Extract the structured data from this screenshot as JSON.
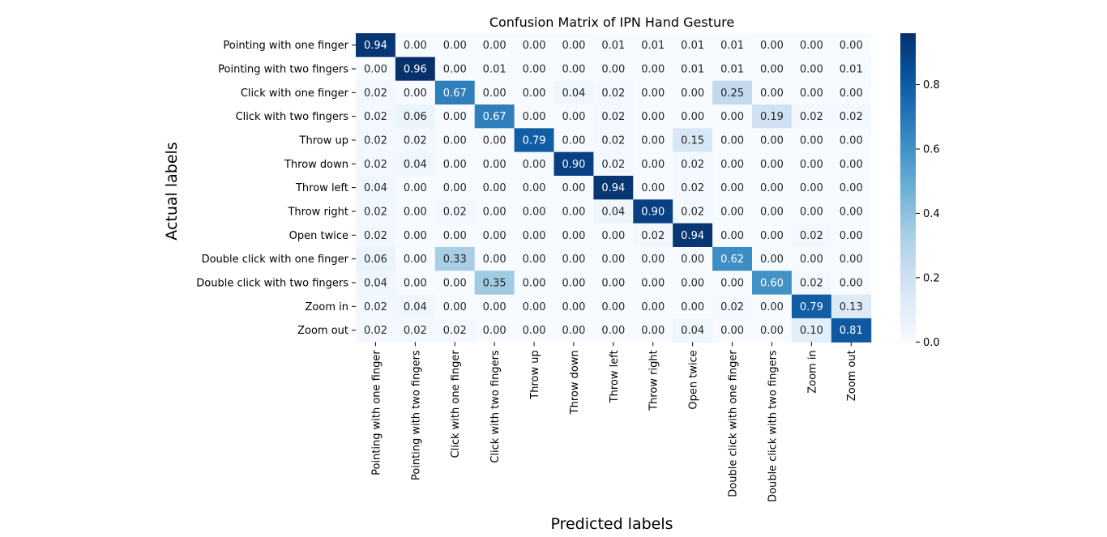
{
  "chart_data": {
    "type": "heatmap",
    "title": "Confusion Matrix of IPN Hand Gesture",
    "xlabel": "Predicted labels",
    "ylabel": "Actual labels",
    "labels": [
      "Pointing with one finger",
      "Pointing with two fingers",
      "Click with one finger",
      "Click with two fingers",
      "Throw up",
      "Throw down",
      "Throw left",
      "Throw right",
      "Open twice",
      "Double click with one finger",
      "Double click with two fingers",
      "Zoom in",
      "Zoom out"
    ],
    "values": [
      [
        0.94,
        0.0,
        0.0,
        0.0,
        0.0,
        0.0,
        0.01,
        0.01,
        0.01,
        0.01,
        0.0,
        0.0,
        0.0
      ],
      [
        0.0,
        0.96,
        0.0,
        0.01,
        0.0,
        0.0,
        0.0,
        0.0,
        0.01,
        0.01,
        0.0,
        0.0,
        0.01
      ],
      [
        0.02,
        0.0,
        0.67,
        0.0,
        0.0,
        0.04,
        0.02,
        0.0,
        0.0,
        0.25,
        0.0,
        0.0,
        0.0
      ],
      [
        0.02,
        0.06,
        0.0,
        0.67,
        0.0,
        0.0,
        0.02,
        0.0,
        0.0,
        0.0,
        0.19,
        0.02,
        0.02
      ],
      [
        0.02,
        0.02,
        0.0,
        0.0,
        0.79,
        0.0,
        0.02,
        0.0,
        0.15,
        0.0,
        0.0,
        0.0,
        0.0
      ],
      [
        0.02,
        0.04,
        0.0,
        0.0,
        0.0,
        0.9,
        0.02,
        0.0,
        0.02,
        0.0,
        0.0,
        0.0,
        0.0
      ],
      [
        0.04,
        0.0,
        0.0,
        0.0,
        0.0,
        0.0,
        0.94,
        0.0,
        0.02,
        0.0,
        0.0,
        0.0,
        0.0
      ],
      [
        0.02,
        0.0,
        0.02,
        0.0,
        0.0,
        0.0,
        0.04,
        0.9,
        0.02,
        0.0,
        0.0,
        0.0,
        0.0
      ],
      [
        0.02,
        0.0,
        0.0,
        0.0,
        0.0,
        0.0,
        0.0,
        0.02,
        0.94,
        0.0,
        0.0,
        0.02,
        0.0
      ],
      [
        0.06,
        0.0,
        0.33,
        0.0,
        0.0,
        0.0,
        0.0,
        0.0,
        0.0,
        0.62,
        0.0,
        0.0,
        0.0
      ],
      [
        0.04,
        0.0,
        0.0,
        0.35,
        0.0,
        0.0,
        0.0,
        0.0,
        0.0,
        0.0,
        0.6,
        0.02,
        0.0
      ],
      [
        0.02,
        0.04,
        0.0,
        0.0,
        0.0,
        0.0,
        0.0,
        0.0,
        0.0,
        0.02,
        0.0,
        0.79,
        0.13
      ],
      [
        0.02,
        0.02,
        0.02,
        0.0,
        0.0,
        0.0,
        0.0,
        0.0,
        0.04,
        0.0,
        0.0,
        0.1,
        0.81
      ]
    ],
    "colormap": "Blues",
    "colorbar": {
      "range": [
        0.0,
        0.96
      ],
      "ticks": [
        "0.0",
        "0.2",
        "0.4",
        "0.6",
        "0.8"
      ]
    },
    "grid": false,
    "legend": "none"
  }
}
